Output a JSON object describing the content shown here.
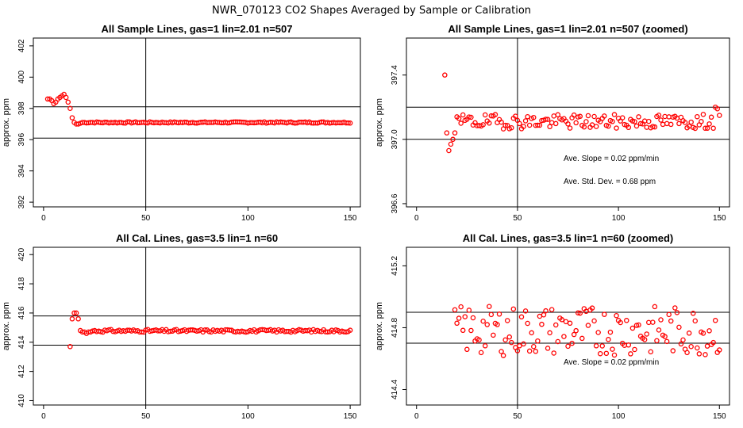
{
  "title": "NWR_070123  CO2 Shapes Averaged by Sample or Calibration",
  "chart_data": [
    {
      "type": "scatter",
      "title": "All Sample Lines, gas=1 lin=2.01 n=507",
      "xlabel": "",
      "ylabel": "approx. ppm",
      "xlim": [
        -5,
        155
      ],
      "ylim": [
        391.7,
        402.5
      ],
      "xticks": [
        "0",
        "50",
        "100",
        "150"
      ],
      "yticks": [
        "392",
        "394",
        "396",
        "398",
        "400",
        "402"
      ],
      "hline": [
        396.1,
        398.1
      ],
      "vline": [
        50
      ],
      "marker_color": "#ff0000",
      "series": [
        {
          "x": [],
          "y": []
        }
      ],
      "annotations": []
    },
    {
      "type": "scatter",
      "title": "All Sample Lines, gas=1 lin=2.01 n=507 (zoomed)",
      "xlabel": "",
      "ylabel": "approx. ppm",
      "xlim": [
        -5,
        155
      ],
      "ylim": [
        396.58,
        397.63
      ],
      "xticks": [
        "0",
        "50",
        "100",
        "150"
      ],
      "yticks": [
        "396.6",
        "397.0",
        "397.4"
      ],
      "hline": [
        397.0,
        397.2
      ],
      "vline": [
        50
      ],
      "marker_color": "#ff0000",
      "series": [
        {
          "x": [],
          "y": []
        }
      ],
      "annotations": [
        "Ave. Slope =  0.02  ppm/min",
        "Ave. Std. Dev. =  0.68  ppm"
      ]
    },
    {
      "type": "scatter",
      "title": "All Cal. Lines, gas=3.5 lin=1 n=60",
      "xlabel": "",
      "ylabel": "approx. ppm",
      "xlim": [
        -5,
        155
      ],
      "ylim": [
        409.7,
        420.5
      ],
      "xticks": [
        "0",
        "50",
        "100",
        "150"
      ],
      "yticks": [
        "410",
        "412",
        "414",
        "416",
        "418",
        "420"
      ],
      "hline": [
        413.8,
        415.8
      ],
      "vline": [
        50
      ],
      "marker_color": "#ff0000",
      "series": [
        {
          "x": [],
          "y": []
        }
      ],
      "annotations": []
    },
    {
      "type": "scatter",
      "title": "All Cal. Lines, gas=3.5 lin=1 n=60 (zoomed)",
      "xlabel": "",
      "ylabel": "approx. ppm",
      "xlim": [
        -5,
        155
      ],
      "ylim": [
        414.3,
        415.32
      ],
      "xticks": [
        "0",
        "50",
        "100",
        "150"
      ],
      "yticks": [
        "414.4",
        "414.8",
        "415.2"
      ],
      "hline": [
        414.7,
        414.9
      ],
      "vline": [
        50
      ],
      "marker_color": "#ff0000",
      "series": [
        {
          "x": [],
          "y": []
        }
      ],
      "annotations": [
        "Ave. Slope =  0.02  ppm/min"
      ]
    }
  ]
}
